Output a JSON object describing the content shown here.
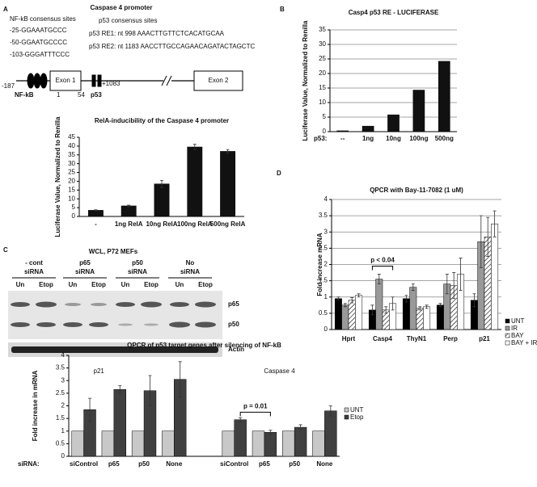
{
  "panel_labels": [
    "A",
    "B",
    "C",
    "D"
  ],
  "promoter": {
    "title": "Caspase 4 promoter",
    "nfkb_heading": "NF-kB consensus sites",
    "nfkb_sites": [
      "-25-GGAAATGCCC",
      "-50-GGAATGCCCC",
      "-103-GGGATTTCCC"
    ],
    "p53_heading": "p53 consensus sites",
    "p53_sites": [
      "p53 RE1: nt 998 AAACTTGTTCTCACATGCAA",
      "p53 RE2: nt 1183 AACCTTGCCAGAACAGATACTAGCTC"
    ],
    "map_labels": {
      "start": "-187",
      "exon1": "Exon 1",
      "exon1_start": "1",
      "exon1_end": "54",
      "p53_pos": "+1083",
      "nfkb": "NF-kB",
      "p53": "p53",
      "exon2": "Exon 2"
    }
  },
  "blot": {
    "title": "WCL, P72 MEFs",
    "conditions": [
      [
        "- cont",
        "siRNA"
      ],
      [
        "p65",
        "siRNA"
      ],
      [
        "p50",
        "siRNA"
      ],
      [
        "No",
        "siRNA"
      ]
    ],
    "lanes": [
      "Un",
      "Etop",
      "Un",
      "Etop",
      "Un",
      "Etop",
      "Un",
      "Etop"
    ],
    "bands": [
      "p65",
      "p50",
      "Actin"
    ]
  },
  "chart_data": [
    {
      "type": "bar",
      "title": "RelA-inducibility of the Caspase 4 promoter",
      "ylabel": "Luciferase Value, Normalized to Renilla",
      "categories": [
        "-",
        "1ng RelA",
        "10ng RelA",
        "100ng RelA",
        "500ng RelA"
      ],
      "series": [
        {
          "color": "#111111",
          "values": [
            3.5,
            6,
            18.5,
            39.5,
            37
          ],
          "errors": [
            0.3,
            0.4,
            2,
            1.5,
            1
          ]
        }
      ],
      "ylim": [
        0,
        45
      ],
      "yticks": [
        0,
        5,
        10,
        15,
        20,
        25,
        30,
        35,
        40,
        45
      ],
      "grid": false
    },
    {
      "type": "bar",
      "title": "Casp4 p53 RE - LUCIFERASE",
      "ylabel": "Luciferase Value, Normalized to Renilla",
      "x_prefix": "p53:",
      "categories": [
        "--",
        "1ng",
        "10ng",
        "100ng",
        "500ng"
      ],
      "series": [
        {
          "color": "#111111",
          "values": [
            0.3,
            1.9,
            5.8,
            14.3,
            24.2
          ]
        }
      ],
      "ylim": [
        0,
        35
      ],
      "yticks": [
        0,
        5,
        10,
        15,
        20,
        25,
        30,
        35
      ],
      "grid": true
    },
    {
      "type": "bar",
      "title": "QPCR of p53 target genes after silencing of NF-kB",
      "ylabel": "Fold increase in mRNA",
      "x_prefix": "siRNA:",
      "groups": [
        "p21",
        "Caspase 4"
      ],
      "categories": [
        "siControl",
        "p65",
        "p50",
        "None",
        "siControl",
        "p65",
        "p50",
        "None"
      ],
      "series": [
        {
          "name": "UNT",
          "color": "#c8c8c8",
          "values": [
            1,
            1,
            1,
            1,
            1,
            1,
            1,
            1
          ]
        },
        {
          "name": "Etop",
          "color": "#404040",
          "values": [
            1.85,
            2.65,
            2.6,
            3.05,
            1.45,
            0.95,
            1.15,
            1.8
          ],
          "errors": [
            0.45,
            0.15,
            0.6,
            0.7,
            0.08,
            0.08,
            0.1,
            0.2
          ]
        }
      ],
      "annotations": [
        "p = 0.01"
      ],
      "ylim": [
        0,
        4
      ],
      "yticks": [
        0,
        0.5,
        1,
        1.5,
        2,
        2.5,
        3,
        3.5,
        4
      ],
      "grid": false,
      "legend": "right"
    },
    {
      "type": "bar",
      "title": "QPCR with Bay-11-7082 (1 uM)",
      "ylabel": "Fold increase mRNA",
      "categories": [
        "Hprt",
        "Casp4",
        "ThyN1",
        "Perp",
        "p21"
      ],
      "series": [
        {
          "name": "UNT",
          "color": "#000000",
          "values": [
            0.95,
            0.6,
            0.95,
            0.75,
            0.9
          ],
          "errors": [
            0.05,
            0.15,
            0.1,
            0.05,
            0.2
          ]
        },
        {
          "name": "IR",
          "color": "#999999",
          "values": [
            0.75,
            1.55,
            1.3,
            1.4,
            2.7
          ],
          "errors": [
            0.05,
            0.15,
            0.1,
            0.3,
            0.8
          ]
        },
        {
          "name": "BAY",
          "color": "#ffffff",
          "hatch": true,
          "values": [
            0.9,
            0.6,
            0.65,
            1.35,
            2.85
          ],
          "errors": [
            0.08,
            0.1,
            0.05,
            0.4,
            0.6
          ]
        },
        {
          "name": "BAY + IR",
          "color": "#ffffff",
          "values": [
            1.05,
            0.8,
            0.7,
            1.7,
            3.25
          ],
          "errors": [
            0.05,
            0.2,
            0.05,
            0.5,
            0.4
          ]
        }
      ],
      "annotations": [
        "p < 0.04"
      ],
      "ylim": [
        0,
        4
      ],
      "yticks": [
        0,
        0.5,
        1,
        1.5,
        2,
        2.5,
        3,
        3.5,
        4
      ],
      "grid": true,
      "legend": "right"
    }
  ]
}
